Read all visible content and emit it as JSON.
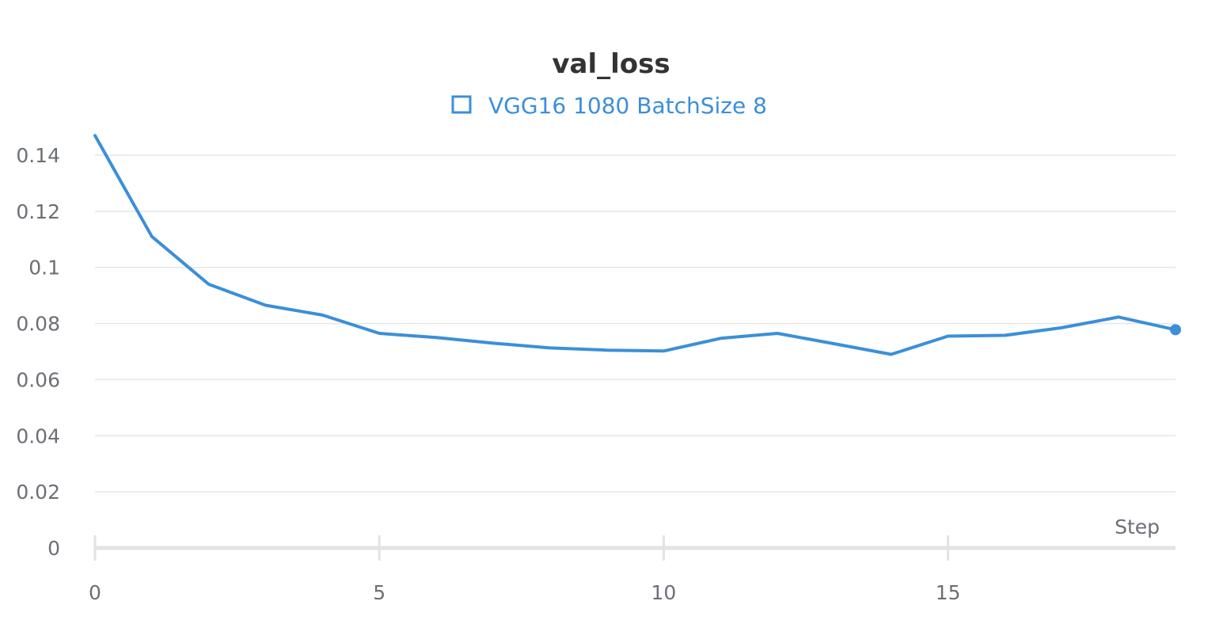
{
  "chart_data": {
    "type": "line",
    "title": "val_loss",
    "xlabel": "Step",
    "ylabel": "",
    "xlim": [
      0,
      19
    ],
    "ylim": [
      0,
      0.15
    ],
    "x_ticks": [
      0,
      5,
      10,
      15
    ],
    "y_ticks": [
      0,
      0.02,
      0.04,
      0.06,
      0.08,
      0.1,
      0.12,
      0.14
    ],
    "y_tick_labels": [
      "0",
      "0.02",
      "0.04",
      "0.06",
      "0.08",
      "0.1",
      "0.12",
      "0.14"
    ],
    "x_tick_labels": [
      "0",
      "5",
      "10",
      "15"
    ],
    "grid": true,
    "legend_position": "top-center",
    "series": [
      {
        "name": "VGG16 1080 BatchSize 8",
        "color": "#3b8fd9",
        "x": [
          0,
          1,
          2,
          3,
          4,
          5,
          6,
          7,
          8,
          9,
          10,
          11,
          12,
          13,
          14,
          15,
          16,
          17,
          18,
          19
        ],
        "values": [
          0.147,
          0.111,
          0.094,
          0.0865,
          0.083,
          0.0765,
          0.075,
          0.073,
          0.0713,
          0.0705,
          0.0702,
          0.0747,
          0.0765,
          0.0728,
          0.069,
          0.0755,
          0.0758,
          0.0785,
          0.0823,
          0.0778
        ]
      }
    ]
  },
  "legend_icon": "square-outline-icon"
}
